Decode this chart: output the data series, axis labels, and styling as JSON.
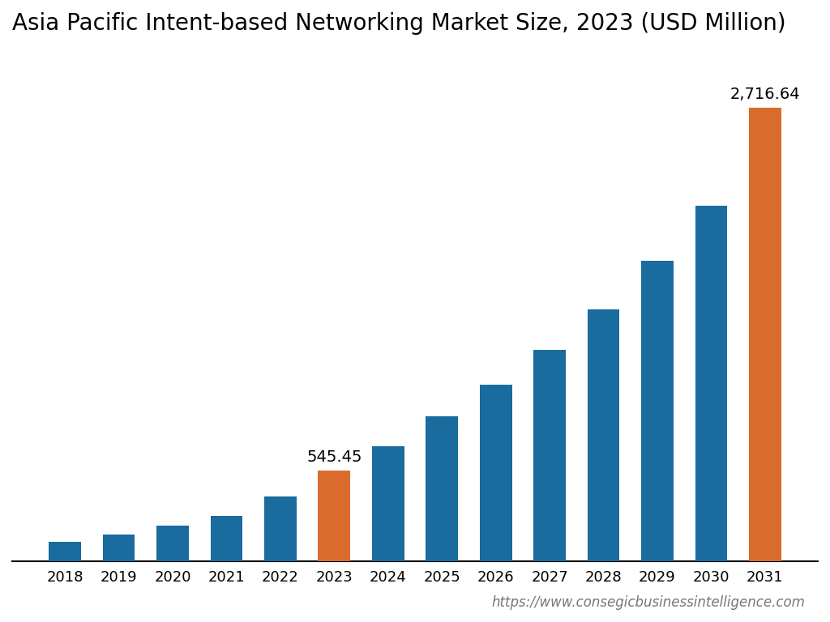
{
  "title": "Asia Pacific Intent-based Networking Market Size, 2023 (USD Million)",
  "years": [
    2018,
    2019,
    2020,
    2021,
    2022,
    2023,
    2024,
    2025,
    2026,
    2027,
    2028,
    2029,
    2030,
    2031
  ],
  "values": [
    115,
    160,
    215,
    275,
    390,
    545.45,
    690,
    870,
    1060,
    1270,
    1510,
    1800,
    2130,
    2716.64
  ],
  "bar_colors": [
    "#1a6b9e",
    "#1a6b9e",
    "#1a6b9e",
    "#1a6b9e",
    "#1a6b9e",
    "#d96b2d",
    "#1a6b9e",
    "#1a6b9e",
    "#1a6b9e",
    "#1a6b9e",
    "#1a6b9e",
    "#1a6b9e",
    "#1a6b9e",
    "#d96b2d"
  ],
  "annotate_bars": [
    5,
    13
  ],
  "annotations": [
    "545.45",
    "2,716.64"
  ],
  "background_color": "#ffffff",
  "title_fontsize": 20,
  "tick_fontsize": 13,
  "annotation_fontsize": 14,
  "ylim": [
    0,
    3050
  ],
  "footer_text": "https://www.consegicbusinessintelligence.com",
  "footer_fontsize": 12
}
